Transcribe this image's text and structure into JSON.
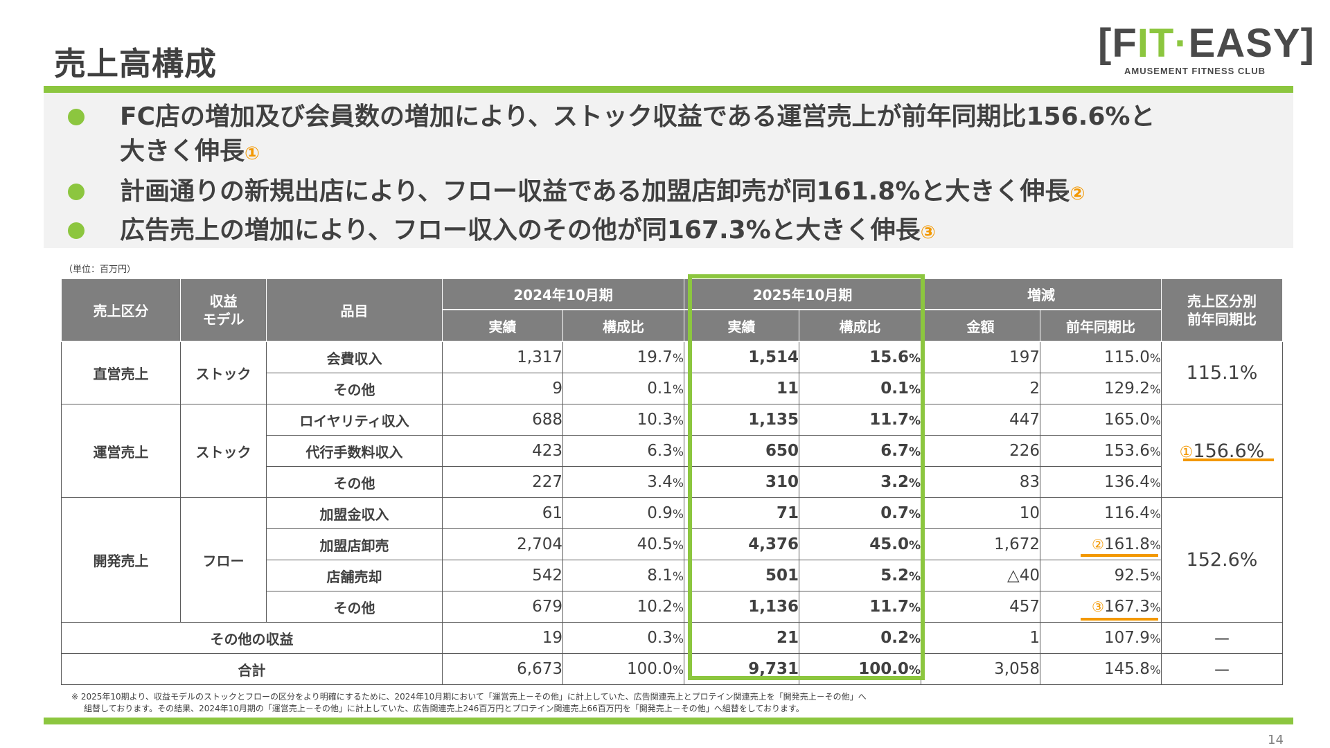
{
  "title": "売上高構成",
  "logo": {
    "brand_dark_1": "F",
    "brand_green": "IT",
    "brand_sep": "·",
    "brand_dark_2": "EASY",
    "tagline": "AMUSEMENT FITNESS CLUB"
  },
  "bullets": [
    {
      "line1": "FC店の増加及び会員数の増加により、ストック収益である運営売上が前年同期比156.6%と",
      "line2": "大きく伸長",
      "marker": "①"
    },
    {
      "line1": "計画通りの新規出店により、フロー収益である加盟店卸売が同161.8%と大きく伸長",
      "marker": "②"
    },
    {
      "line1": "広告売上の増加により、フロー収入のその他が同167.3%と大きく伸長",
      "marker": "③"
    }
  ],
  "unit_note": "（単位：百万円）",
  "table": {
    "headers": {
      "category": "売上区分",
      "model": "収益\nモデル",
      "item": "品目",
      "fy2024": "2024年10月期",
      "fy2025": "2025年10月期",
      "change": "増減",
      "segment_yoy": "売上区分別\n前年同期比",
      "actual": "実績",
      "ratio": "構成比",
      "amount": "金額",
      "yoy": "前年同期比"
    },
    "rows": [
      {
        "category": "直営売上",
        "model": "ストック",
        "item": "会費収入",
        "a24": "1,317",
        "r24": "19.7",
        "a25": "1,514",
        "r25": "15.6",
        "amt": "197",
        "yoy": "115.0",
        "seg": "115.1%"
      },
      {
        "item": "その他",
        "a24": "9",
        "r24": "0.1",
        "a25": "11",
        "r25": "0.1",
        "amt": "2",
        "yoy": "129.2"
      },
      {
        "category": "運営売上",
        "model": "ストック",
        "item": "ロイヤリティ収入",
        "a24": "688",
        "r24": "10.3",
        "a25": "1,135",
        "r25": "11.7",
        "amt": "447",
        "yoy": "165.0",
        "seg_marker": "①",
        "seg": "156.6%"
      },
      {
        "item": "代行手数料収入",
        "a24": "423",
        "r24": "6.3",
        "a25": "650",
        "r25": "6.7",
        "amt": "226",
        "yoy": "153.6"
      },
      {
        "item": "その他",
        "a24": "227",
        "r24": "3.4",
        "a25": "310",
        "r25": "3.2",
        "amt": "83",
        "yoy": "136.4"
      },
      {
        "category": "開発売上",
        "model": "フロー",
        "item": "加盟金収入",
        "a24": "61",
        "r24": "0.9",
        "a25": "71",
        "r25": "0.7",
        "amt": "10",
        "yoy": "116.4",
        "seg": "152.6%"
      },
      {
        "item": "加盟店卸売",
        "a24": "2,704",
        "r24": "40.5",
        "a25": "4,376",
        "r25": "45.0",
        "amt": "1,672",
        "yoy_marker": "②",
        "yoy": "161.8"
      },
      {
        "item": "店舗売却",
        "a24": "542",
        "r24": "8.1",
        "a25": "501",
        "r25": "5.2",
        "amt": "△40",
        "yoy": "92.5"
      },
      {
        "item": "その他",
        "a24": "679",
        "r24": "10.2",
        "a25": "1,136",
        "r25": "11.7",
        "amt": "457",
        "yoy_marker": "③",
        "yoy": "167.3"
      },
      {
        "item": "その他の収益",
        "a24": "19",
        "r24": "0.3",
        "a25": "21",
        "r25": "0.2",
        "amt": "1",
        "yoy": "107.9",
        "seg": "－"
      },
      {
        "item": "合計",
        "a24": "6,673",
        "r24": "100.0",
        "a25": "9,731",
        "r25": "100.0",
        "amt": "3,058",
        "yoy": "145.8",
        "seg": "－"
      }
    ],
    "percent_sign": "%"
  },
  "footnote": {
    "line1": "※ 2025年10期より、収益モデルのストックとフローの区分をより明確にするために、2024年10月期において「運営売上－その他」に計上していた、広告関連売上とプロテイン関連売上を「開発売上－その他」へ",
    "line2": "組替しております。その結果、2024年10月期の「運営売上－その他」に計上していた、広告関連売上246百万円とプロテイン関連売上66百万円を「開発売上－その他」へ組替をしております。"
  },
  "page_number": "14",
  "colors": {
    "accent_green": "#8cc63f",
    "accent_orange": "#f39800",
    "header_gray": "#7f7f7f",
    "bullet_bg": "#f2f2f2"
  }
}
